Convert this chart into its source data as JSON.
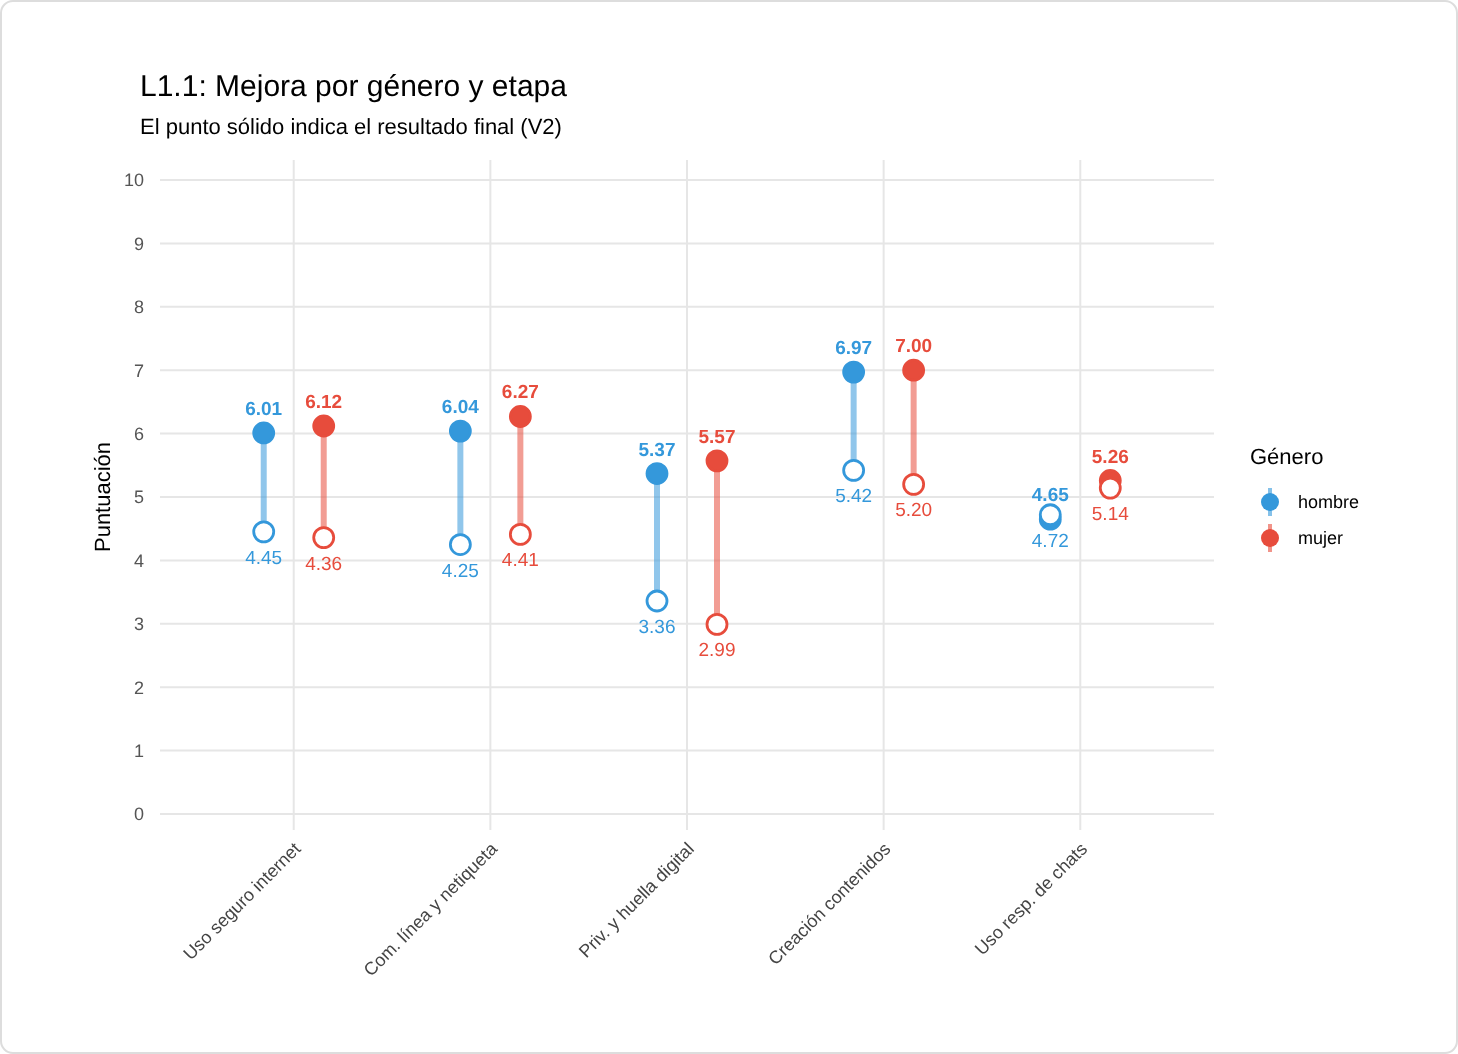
{
  "chart_data": {
    "type": "scatter",
    "title": "L1.1: Mejora por género y etapa",
    "subtitle": "El punto sólido indica el resultado final (V2)",
    "ylabel": "Puntuación",
    "legend_title": "Género",
    "categories": [
      "Uso seguro internet",
      "Com. línea y netiqueta",
      "Priv. y huella digital",
      "Creación contenidos",
      "Uso resp. de chats"
    ],
    "series": [
      {
        "name": "hombre",
        "color": "#3498db",
        "values": [
          6.01,
          6.04,
          5.37,
          6.97,
          4.65
        ],
        "value_labels": [
          "6.01",
          "6.04",
          "5.37",
          "6.97",
          "4.65"
        ],
        "marker": "circle"
      },
      {
        "name": "mujer",
        "color": "#e74c3c",
        "values": [
          6.12,
          6.27,
          5.57,
          7.0,
          5.26
        ],
        "value_labels": [
          "6.12",
          "6.27",
          "5.57",
          "7.00",
          "5.26"
        ],
        "marker": "circle"
      },
      {
        "color": "#3498db",
        "values": [
          4.45,
          4.25,
          3.36,
          5.42,
          4.72
        ],
        "value_labels": [
          "4.45",
          "4.25",
          "3.36",
          "5.42",
          "4.72"
        ],
        "marker": "circle"
      },
      {
        "color": "#e74c3c",
        "values": [
          4.36,
          4.41,
          2.99,
          5.2,
          5.14
        ],
        "value_labels": [
          "4.36",
          "4.41",
          "2.99",
          "5.20",
          "5.14"
        ],
        "marker": "circle"
      }
    ],
    "ylim": [
      0,
      10
    ],
    "yticks": [
      0,
      1,
      2,
      3,
      4,
      5,
      6,
      7,
      8,
      9,
      10
    ],
    "grid": true,
    "legend": "right"
  }
}
